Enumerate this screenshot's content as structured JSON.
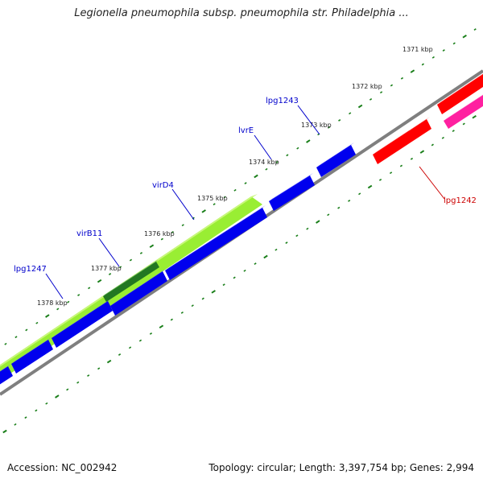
{
  "title": "Legionella pneumophila subsp. pneumophila str. Philadelphia ...",
  "footer": {
    "accession": "Accession: NC_002942",
    "summary": "Topology: circular; Length: 3,397,754 bp; Genes: 2,994"
  },
  "colors": {
    "backbone": "#7f7f7f",
    "tick": "#1a7f1a",
    "forward_gene": "#0000ee",
    "reverse_gene": "#ff0000",
    "magenta_gene": "#ff20a0",
    "long_gene": "#99ee33",
    "dark_gene": "#227722",
    "label_blue": "#0000cc",
    "label_red": "#cc0000"
  },
  "scale_labels": [
    {
      "text": "1371 kbp"
    },
    {
      "text": "1372 kbp"
    },
    {
      "text": "1373 kbp"
    },
    {
      "text": "1374 kbp"
    },
    {
      "text": "1375 kbp"
    },
    {
      "text": "1376 kbp"
    },
    {
      "text": "1377 kbp"
    },
    {
      "text": "1378 kbp"
    }
  ],
  "gene_labels": [
    {
      "name": "lpg1243",
      "color": "label_blue"
    },
    {
      "name": "lvrE",
      "color": "label_blue"
    },
    {
      "name": "virD4",
      "color": "label_blue"
    },
    {
      "name": "virB11",
      "color": "label_blue"
    },
    {
      "name": "lpg1247",
      "color": "label_blue"
    },
    {
      "name": "lpg1242",
      "color": "label_red"
    }
  ]
}
